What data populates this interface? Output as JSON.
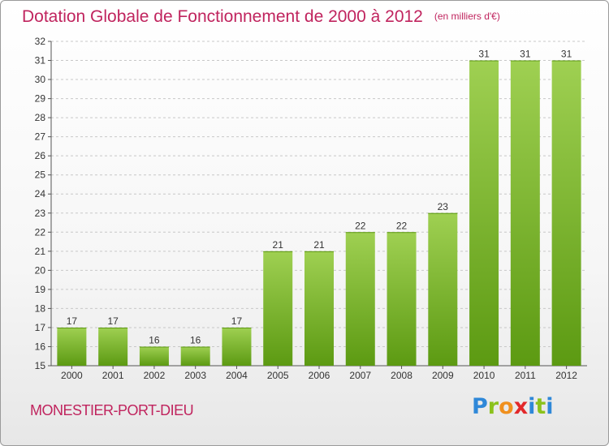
{
  "title": "Dotation Globale de Fonctionnement de 2000 à 2012",
  "unit": "(en milliers d'€)",
  "commune": "MONESTIER-PORT-DIEU",
  "logo": {
    "letters": [
      "P",
      "r",
      "o",
      "x",
      "i",
      "t",
      "i"
    ],
    "colors": [
      "#2f88d8",
      "#8bc21c",
      "#f0901e",
      "#e2282a",
      "#2f88d8",
      "#8bc21c",
      "#2f88d8"
    ]
  },
  "colors": {
    "title": "#c0245e",
    "bar_light": "#9fd052",
    "bar_dark": "#5c9a12"
  },
  "chart_data": {
    "type": "bar",
    "categories": [
      "2000",
      "2001",
      "2002",
      "2003",
      "2004",
      "2005",
      "2006",
      "2007",
      "2008",
      "2009",
      "2010",
      "2011",
      "2012"
    ],
    "values": [
      17,
      17,
      16,
      16,
      17,
      21,
      21,
      22,
      22,
      23,
      31,
      31,
      31
    ],
    "ylim": [
      15,
      32
    ],
    "yticks": [
      "15",
      "16",
      "17",
      "18",
      "19",
      "20",
      "21",
      "22",
      "23",
      "24",
      "25",
      "26",
      "27",
      "28",
      "29",
      "30",
      "31",
      "32"
    ],
    "grid": true
  }
}
